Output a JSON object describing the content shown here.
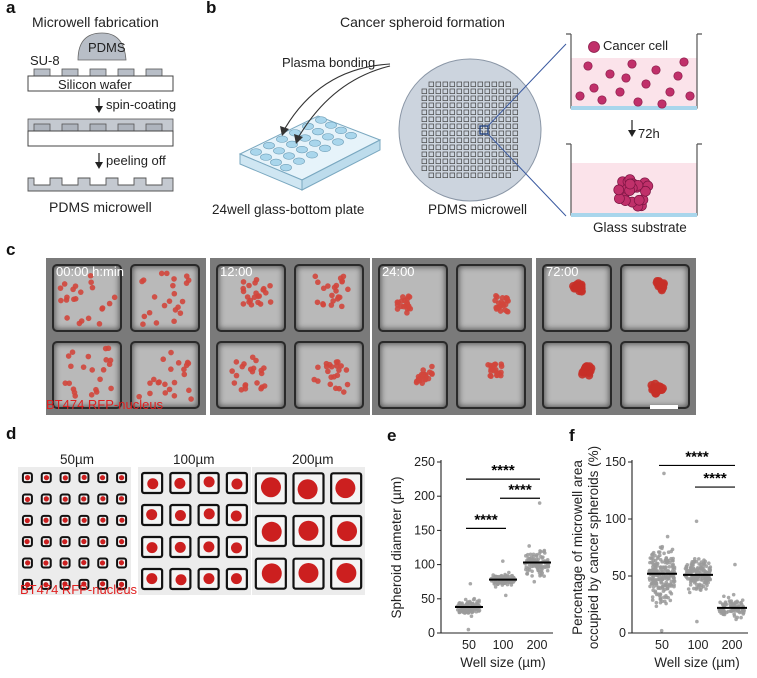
{
  "panels": {
    "a": "a",
    "b": "b",
    "c": "c",
    "d": "d",
    "e": "e",
    "f": "f"
  },
  "panel_a": {
    "title": "Microwell fabrication",
    "su8": "SU-8",
    "pdms": "PDMS",
    "wafer": "Silicon wafer",
    "step1": "spin-coating",
    "step2": "peeling off",
    "result": "PDMS microwell"
  },
  "panel_b": {
    "title": "Cancer spheroid formation",
    "bonding": "Plasma bonding",
    "plate": "24well glass-bottom plate",
    "microwell": "PDMS microwell",
    "cell": "Cancer cell",
    "time": "72h",
    "substrate": "Glass substrate"
  },
  "panel_c": {
    "timepoints": [
      "00:00 h:min",
      "12:00",
      "24:00",
      "72:00"
    ],
    "label": "BT474 RFP-nucleus"
  },
  "panel_d": {
    "sizes": [
      "50µm",
      "100µm",
      "200µm"
    ],
    "label": "BT474 RFP-nucleus"
  },
  "colors": {
    "rfp": "#e02020",
    "plate": "#a9d6ec",
    "medium": "#fbe3ea",
    "grey": "#bdbdbd"
  },
  "chart_data": [
    {
      "type": "scatter",
      "panel": "e",
      "ylabel": "Spheroid diameter (µm)",
      "xlabel": "Well size (µm)",
      "categories": [
        "50",
        "100",
        "200"
      ],
      "ylim": [
        0,
        250
      ],
      "yticks": [
        0,
        50,
        100,
        150,
        200,
        250
      ],
      "medians": [
        38,
        78,
        103
      ],
      "ranges": [
        [
          5,
          72
        ],
        [
          55,
          105
        ],
        [
          75,
          190
        ]
      ],
      "significance": [
        {
          "from": "50",
          "to": "100",
          "label": "****",
          "y": 153
        },
        {
          "from": "100",
          "to": "200",
          "label": "****",
          "y": 197
        },
        {
          "from": "50",
          "to": "200",
          "label": "****",
          "y": 225
        }
      ]
    },
    {
      "type": "scatter",
      "panel": "f",
      "ylabel": "Percentage of microwell area occupied by cancer spheroids (%)",
      "ylabel_lines": [
        "Percentage of microwell area",
        "occupied by cancer spheroids (%)"
      ],
      "xlabel": "Well size (µm)",
      "categories": [
        "50",
        "100",
        "200"
      ],
      "ylim": [
        0,
        150
      ],
      "yticks": [
        0,
        50,
        100,
        150
      ],
      "medians": [
        52,
        51,
        22
      ],
      "ranges": [
        [
          2,
          140
        ],
        [
          10,
          98
        ],
        [
          12,
          60
        ]
      ],
      "significance": [
        {
          "from": "100",
          "to": "200",
          "label": "****",
          "y": 128
        },
        {
          "from": "50",
          "to": "200",
          "label": "****",
          "y": 147
        }
      ]
    }
  ]
}
